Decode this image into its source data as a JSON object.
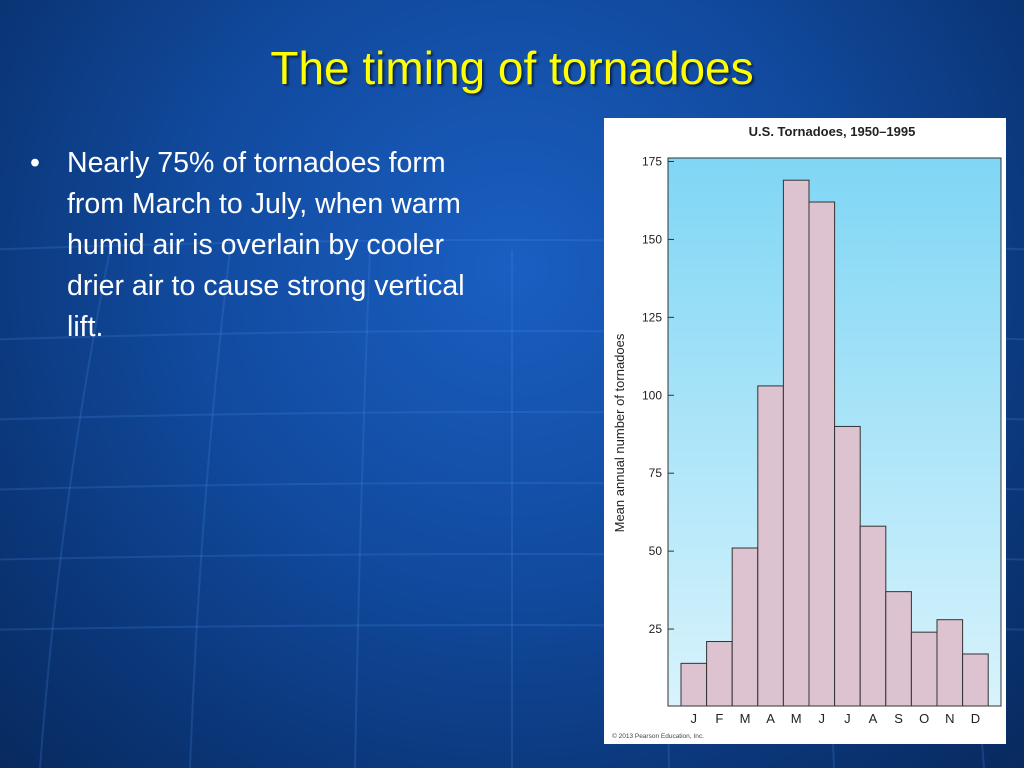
{
  "slide": {
    "title": "The timing of tornadoes",
    "bullet": "Nearly 75% of tornadoes form from March to July, when warm humid air is overlain by cooler drier air to cause strong vertical lift."
  },
  "colors": {
    "background": "#114a9e",
    "title": "#ffff00",
    "bar_fill": "#dcc3cf",
    "plot_background_top": "#7fd6f5",
    "plot_background_bottom": "#d8f3fc"
  },
  "chart_data": {
    "type": "bar",
    "title": "U.S. Tornadoes, 1950–1995",
    "xlabel": "",
    "ylabel": "Mean annual number of tornadoes",
    "categories": [
      "J",
      "F",
      "M",
      "A",
      "M",
      "J",
      "J",
      "A",
      "S",
      "O",
      "N",
      "D"
    ],
    "values": [
      14,
      21,
      51,
      103,
      169,
      162,
      90,
      58,
      37,
      24,
      28,
      17
    ],
    "yticks": [
      25,
      50,
      75,
      100,
      125,
      150,
      175
    ],
    "ylim": [
      0,
      180
    ],
    "grid": false,
    "legend": "none",
    "credit": "© 2013 Pearson Education, Inc."
  }
}
